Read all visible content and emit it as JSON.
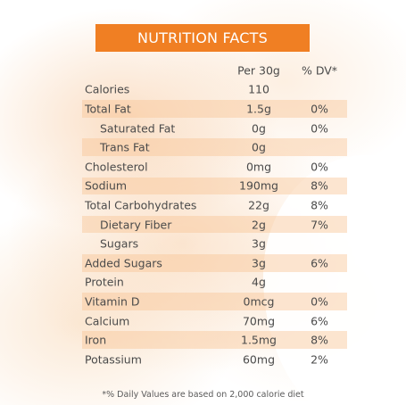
{
  "title": "NUTRITION FACTS",
  "columns": {
    "amount": "Per 30g",
    "dv": "% DV*"
  },
  "rows": [
    {
      "label": "Calories",
      "amount": "110",
      "dv": "",
      "indent": false,
      "shaded": false
    },
    {
      "label": "Total Fat",
      "amount": "1.5g",
      "dv": "0%",
      "indent": false,
      "shaded": true
    },
    {
      "label": "Saturated Fat",
      "amount": "0g",
      "dv": "0%",
      "indent": true,
      "shaded": false
    },
    {
      "label": "Trans Fat",
      "amount": "0g",
      "dv": "",
      "indent": true,
      "shaded": true
    },
    {
      "label": "Cholesterol",
      "amount": "0mg",
      "dv": "0%",
      "indent": false,
      "shaded": false
    },
    {
      "label": "Sodium",
      "amount": "190mg",
      "dv": "8%",
      "indent": false,
      "shaded": true
    },
    {
      "label": "Total Carbohydrates",
      "amount": "22g",
      "dv": "8%",
      "indent": false,
      "shaded": false
    },
    {
      "label": "Dietary Fiber",
      "amount": "2g",
      "dv": "7%",
      "indent": true,
      "shaded": true
    },
    {
      "label": "Sugars",
      "amount": "3g",
      "dv": "",
      "indent": true,
      "shaded": false
    },
    {
      "label": "Added Sugars",
      "amount": "3g",
      "dv": "6%",
      "indent": false,
      "shaded": true
    },
    {
      "label": "Protein",
      "amount": "4g",
      "dv": "",
      "indent": false,
      "shaded": false
    },
    {
      "label": "Vitamin D",
      "amount": "0mcg",
      "dv": "0%",
      "indent": false,
      "shaded": true
    },
    {
      "label": "Calcium",
      "amount": "70mg",
      "dv": "6%",
      "indent": false,
      "shaded": false
    },
    {
      "label": "Iron",
      "amount": "1.5mg",
      "dv": "8%",
      "indent": false,
      "shaded": true
    },
    {
      "label": "Potassium",
      "amount": "60mg",
      "dv": "2%",
      "indent": false,
      "shaded": false
    }
  ],
  "footnote": "*% Daily Values are based on 2,000 calorie diet",
  "colors": {
    "header_bg": "#f07f23",
    "row_shade": "#f8c696",
    "text": "#4a4a4a"
  }
}
